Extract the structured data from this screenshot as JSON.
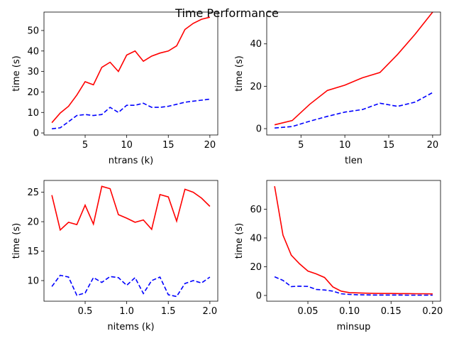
{
  "chart_data": {
    "title": "Time Performance",
    "type": "line",
    "subplots": [
      {
        "xlabel": "ntrans (k)",
        "ylabel": "time (s)",
        "xlim": [
          0.05,
          20.95
        ],
        "ylim": [
          -1,
          59
        ],
        "xticks": [
          5,
          10,
          15,
          20
        ],
        "xtick_labels": [
          "5",
          "10",
          "15",
          "20"
        ],
        "yticks": [
          0,
          10,
          20,
          30,
          40,
          50
        ],
        "ytick_labels": [
          "0",
          "10",
          "20",
          "30",
          "40",
          "50"
        ],
        "series": [
          {
            "name": "red",
            "color": "#ff0000",
            "dash": "solid",
            "x": [
              1,
              2,
              3,
              4,
              5,
              6,
              7,
              8,
              9,
              10,
              11,
              12,
              13,
              14,
              15,
              16,
              17,
              18,
              19,
              20
            ],
            "y": [
              5,
              9.7,
              13,
              18.5,
              25,
              23.5,
              32,
              34.5,
              30,
              38,
              40,
              35,
              37.5,
              39,
              40,
              42.5,
              50.5,
              53.5,
              55.5,
              56.5
            ]
          },
          {
            "name": "blue",
            "color": "#0000ff",
            "dash": "dashed",
            "x": [
              1,
              2,
              3,
              4,
              5,
              6,
              7,
              8,
              9,
              10,
              11,
              12,
              13,
              14,
              15,
              16,
              17,
              18,
              19,
              20
            ],
            "y": [
              2,
              2.5,
              5.5,
              8.5,
              9,
              8.5,
              9,
              12.5,
              10,
              13.5,
              13.5,
              14.5,
              12.5,
              12.5,
              13,
              14,
              15,
              15.5,
              16,
              16.5
            ]
          }
        ]
      },
      {
        "xlabel": "tlen",
        "ylabel": "time (s)",
        "xlim": [
          1.1,
          20.9
        ],
        "ylim": [
          -3,
          55
        ],
        "xticks": [
          5,
          10,
          15,
          20
        ],
        "xtick_labels": [
          "5",
          "10",
          "15",
          "20"
        ],
        "yticks": [
          0,
          20,
          40
        ],
        "ytick_labels": [
          "0",
          "20",
          "40"
        ],
        "series": [
          {
            "name": "red",
            "color": "#ff0000",
            "dash": "solid",
            "x": [
              2,
              4,
              6,
              8,
              10,
              12,
              14,
              16,
              18,
              20
            ],
            "y": [
              1.8,
              3.8,
              11.5,
              18,
              20.5,
              24,
              26.5,
              35,
              44.5,
              55
            ]
          },
          {
            "name": "blue",
            "color": "#0000ff",
            "dash": "dashed",
            "x": [
              2,
              4,
              6,
              8,
              10,
              12,
              14,
              16,
              18,
              20
            ],
            "y": [
              0.3,
              1,
              3.5,
              5.8,
              7.8,
              9,
              12,
              10.5,
              12.5,
              17
            ]
          }
        ]
      },
      {
        "xlabel": "nitems (k)",
        "ylabel": "time (s)",
        "xlim": [
          0.005,
          2.095
        ],
        "ylim": [
          6.5,
          27
        ],
        "xticks": [
          0.5,
          1.0,
          1.5,
          2.0
        ],
        "xtick_labels": [
          "0.5",
          "1.0",
          "1.5",
          "2.0"
        ],
        "yticks": [
          10,
          15,
          20,
          25
        ],
        "ytick_labels": [
          "10",
          "15",
          "20",
          "25"
        ],
        "series": [
          {
            "name": "red",
            "color": "#ff0000",
            "dash": "solid",
            "x": [
              0.1,
              0.2,
              0.3,
              0.4,
              0.5,
              0.6,
              0.7,
              0.8,
              0.9,
              1.0,
              1.1,
              1.2,
              1.3,
              1.4,
              1.5,
              1.6,
              1.7,
              1.8,
              1.9,
              2.0
            ],
            "y": [
              24.5,
              18.6,
              19.9,
              19.5,
              22.8,
              19.6,
              26,
              25.6,
              21.2,
              20.6,
              19.9,
              20.3,
              18.7,
              24.6,
              24.2,
              20.1,
              25.5,
              25,
              24,
              22.6
            ]
          },
          {
            "name": "blue",
            "color": "#0000ff",
            "dash": "dashed",
            "x": [
              0.1,
              0.2,
              0.3,
              0.4,
              0.5,
              0.6,
              0.7,
              0.8,
              0.9,
              1.0,
              1.1,
              1.2,
              1.3,
              1.4,
              1.5,
              1.6,
              1.7,
              1.8,
              1.9,
              2.0
            ],
            "y": [
              9,
              10.9,
              10.6,
              7.5,
              7.9,
              10.5,
              9.7,
              10.7,
              10.5,
              9.2,
              10.5,
              7.8,
              10,
              10.6,
              7.6,
              7.3,
              9.5,
              10,
              9.6,
              10.6
            ]
          }
        ]
      },
      {
        "xlabel": "minsup",
        "ylabel": "time (s)",
        "xlim": [
          0.0005,
          0.2095
        ],
        "ylim": [
          -4,
          80
        ],
        "xticks": [
          0.05,
          0.1,
          0.15,
          0.2
        ],
        "xtick_labels": [
          "0.05",
          "0.10",
          "0.15",
          "0.20"
        ],
        "yticks": [
          0,
          20,
          40,
          60
        ],
        "ytick_labels": [
          "0",
          "20",
          "40",
          "60"
        ],
        "series": [
          {
            "name": "red",
            "color": "#ff0000",
            "dash": "solid",
            "x": [
              0.01,
              0.02,
              0.03,
              0.04,
              0.05,
              0.06,
              0.07,
              0.08,
              0.09,
              0.1,
              0.11,
              0.12,
              0.13,
              0.14,
              0.15,
              0.16,
              0.17,
              0.18,
              0.19,
              0.2
            ],
            "y": [
              76,
              42,
              28,
              22,
              17,
              15,
              12.5,
              6,
              3,
              2,
              1.8,
              1.6,
              1.5,
              1.4,
              1.4,
              1.3,
              1.3,
              1.2,
              1.2,
              1.1
            ]
          },
          {
            "name": "blue",
            "color": "#0000ff",
            "dash": "dashed",
            "x": [
              0.01,
              0.02,
              0.03,
              0.04,
              0.05,
              0.06,
              0.07,
              0.08,
              0.09,
              0.1,
              0.11,
              0.12,
              0.13,
              0.14,
              0.15,
              0.16,
              0.17,
              0.18,
              0.19,
              0.2
            ],
            "y": [
              13,
              10.5,
              6.2,
              6.5,
              6.3,
              4.2,
              3.8,
              3,
              1.2,
              0.7,
              0.5,
              0.4,
              0.3,
              0.3,
              0.3,
              0.3,
              0.2,
              0.2,
              0.2,
              0.2
            ]
          }
        ]
      }
    ]
  }
}
